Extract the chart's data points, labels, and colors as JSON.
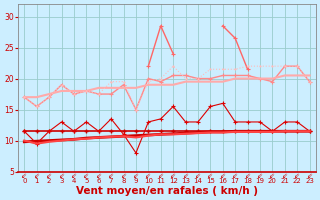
{
  "x": [
    0,
    1,
    2,
    3,
    4,
    5,
    6,
    7,
    8,
    9,
    10,
    11,
    12,
    13,
    14,
    15,
    16,
    17,
    18,
    19,
    20,
    21,
    22,
    23
  ],
  "series": [
    {
      "name": "line_flat_dark",
      "color": "#cc0000",
      "linewidth": 1.2,
      "marker": "+",
      "markersize": 3,
      "markeredgewidth": 1.0,
      "linestyle": "-",
      "y": [
        11.5,
        11.5,
        11.5,
        11.5,
        11.5,
        11.5,
        11.5,
        11.5,
        11.5,
        11.5,
        11.5,
        11.5,
        11.5,
        11.5,
        11.5,
        11.5,
        11.5,
        11.5,
        11.5,
        11.5,
        11.5,
        11.5,
        11.5,
        11.5
      ]
    },
    {
      "name": "line_trend_dark",
      "color": "#cc0000",
      "linewidth": 2.0,
      "marker": null,
      "markersize": 0,
      "markeredgewidth": 0,
      "linestyle": "-",
      "y": [
        9.8,
        9.9,
        10.0,
        10.1,
        10.2,
        10.4,
        10.5,
        10.6,
        10.7,
        10.8,
        10.9,
        11.0,
        11.1,
        11.2,
        11.3,
        11.4,
        11.4,
        11.5,
        11.5,
        11.5,
        11.5,
        11.5,
        11.5,
        11.5
      ]
    },
    {
      "name": "line_zigzag_red",
      "color": "#dd0000",
      "linewidth": 0.8,
      "marker": "+",
      "markersize": 3,
      "markeredgewidth": 0.8,
      "linestyle": "-",
      "y": [
        11.5,
        9.5,
        11.5,
        13.0,
        11.5,
        13.0,
        11.5,
        13.5,
        11.0,
        8.0,
        13.0,
        13.5,
        15.5,
        13.0,
        13.0,
        15.5,
        16.0,
        13.0,
        13.0,
        13.0,
        11.5,
        13.0,
        13.0,
        11.5
      ]
    },
    {
      "name": "line_lower_red",
      "color": "#ff4444",
      "linewidth": 1.5,
      "marker": null,
      "markersize": 0,
      "markeredgewidth": 0,
      "linestyle": "-",
      "y": [
        10.0,
        9.5,
        9.8,
        10.0,
        10.2,
        10.3,
        10.5,
        10.6,
        10.7,
        10.5,
        10.8,
        11.0,
        11.0,
        11.1,
        11.2,
        11.3,
        11.3,
        11.4,
        11.4,
        11.4,
        11.4,
        11.5,
        11.5,
        11.5
      ]
    },
    {
      "name": "line_pink_markers",
      "color": "#ff8888",
      "linewidth": 1.0,
      "marker": "+",
      "markersize": 3,
      "markeredgewidth": 0.8,
      "linestyle": "-",
      "y": [
        17.0,
        15.5,
        17.0,
        19.0,
        17.5,
        18.0,
        17.5,
        17.5,
        19.0,
        15.0,
        20.0,
        19.5,
        20.5,
        20.5,
        20.0,
        20.0,
        20.5,
        20.5,
        20.5,
        20.0,
        19.5,
        22.0,
        22.0,
        19.5
      ]
    },
    {
      "name": "line_pink_trend",
      "color": "#ffaaaa",
      "linewidth": 1.5,
      "marker": null,
      "markersize": 0,
      "markeredgewidth": 0,
      "linestyle": "-",
      "y": [
        17.0,
        17.0,
        17.5,
        18.0,
        18.0,
        18.0,
        18.5,
        18.5,
        18.5,
        18.5,
        19.0,
        19.0,
        19.0,
        19.5,
        19.5,
        19.5,
        19.5,
        20.0,
        20.0,
        20.0,
        20.0,
        20.5,
        20.5,
        20.5
      ]
    },
    {
      "name": "line_pink_spike",
      "color": "#ff6666",
      "linewidth": 1.0,
      "marker": "+",
      "markersize": 3,
      "markeredgewidth": 0.8,
      "linestyle": "-",
      "y": [
        null,
        null,
        null,
        null,
        null,
        null,
        null,
        null,
        null,
        null,
        22.0,
        28.5,
        24.0,
        null,
        null,
        null,
        28.5,
        26.5,
        21.5,
        null,
        null,
        null,
        null,
        null
      ]
    },
    {
      "name": "line_pink_dotted",
      "color": "#ffbbbb",
      "linewidth": 0.8,
      "marker": ".",
      "markersize": 2,
      "markeredgewidth": 0.5,
      "linestyle": ":",
      "y": [
        17.0,
        15.5,
        17.0,
        19.0,
        17.5,
        18.0,
        17.5,
        19.5,
        19.5,
        15.0,
        19.5,
        20.0,
        22.0,
        20.0,
        20.0,
        21.5,
        21.5,
        21.5,
        22.0,
        22.0,
        22.0,
        22.0,
        22.0,
        19.5
      ]
    }
  ],
  "xlabel": "Vent moyen/en rafales ( km/h )",
  "xlim_left": -0.5,
  "xlim_right": 23.5,
  "ylim": [
    5,
    32
  ],
  "yticks": [
    5,
    10,
    15,
    20,
    25,
    30
  ],
  "ytick_labels": [
    "5",
    "10",
    "15",
    "20",
    "25",
    "30"
  ],
  "xticks": [
    0,
    1,
    2,
    3,
    4,
    5,
    6,
    7,
    8,
    9,
    10,
    11,
    12,
    13,
    14,
    15,
    16,
    17,
    18,
    19,
    20,
    21,
    22,
    23
  ],
  "bg_color": "#cceeff",
  "grid_color": "#99cccc",
  "tick_color": "#cc0000",
  "xlabel_color": "#cc0000",
  "xlabel_fontsize": 7.5,
  "ytick_fontsize": 5.5,
  "xtick_fontsize": 5.0,
  "spine_color": "#888888",
  "bottom_spine_color": "#cc0000"
}
